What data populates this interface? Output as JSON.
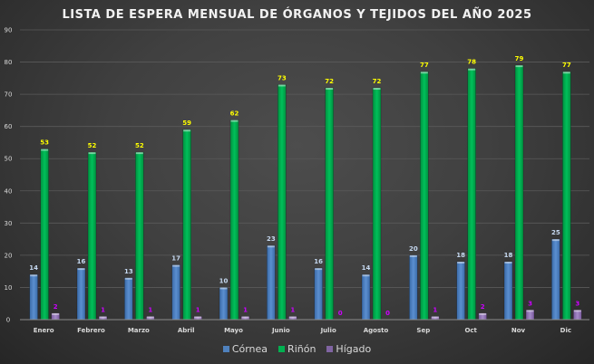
{
  "chart_data": {
    "type": "bar",
    "title": "LISTA DE ESPERA MENSUAL DE ÓRGANOS Y TEJIDOS  DEL AÑO 2025",
    "xlabel": "",
    "ylabel": "",
    "ylim": [
      0,
      90
    ],
    "yticks": [
      0,
      10,
      20,
      30,
      40,
      50,
      60,
      70,
      80,
      90
    ],
    "grid": true,
    "legend_position": "bottom",
    "categories": [
      "Enero",
      "Febrero",
      "Marzo",
      "Abril",
      "Mayo",
      "Junio",
      "Julio",
      "Agosto",
      "Sep",
      "Oct",
      "Nov",
      "Dic"
    ],
    "series": [
      {
        "name": "Córnea",
        "color": "#4f81bd",
        "label_color": "#c6d9f1",
        "values": [
          14,
          16,
          13,
          17,
          10,
          23,
          16,
          14,
          20,
          18,
          18,
          25
        ]
      },
      {
        "name": "Riñón",
        "color": "#00b050",
        "label_color": "#ffff00",
        "values": [
          53,
          52,
          52,
          59,
          62,
          73,
          72,
          72,
          77,
          78,
          79,
          77
        ]
      },
      {
        "name": "Hígado",
        "color": "#8064a2",
        "label_color": "#cc00ff",
        "values": [
          2,
          1,
          1,
          1,
          1,
          1,
          0,
          0,
          1,
          2,
          3,
          3
        ]
      }
    ]
  }
}
